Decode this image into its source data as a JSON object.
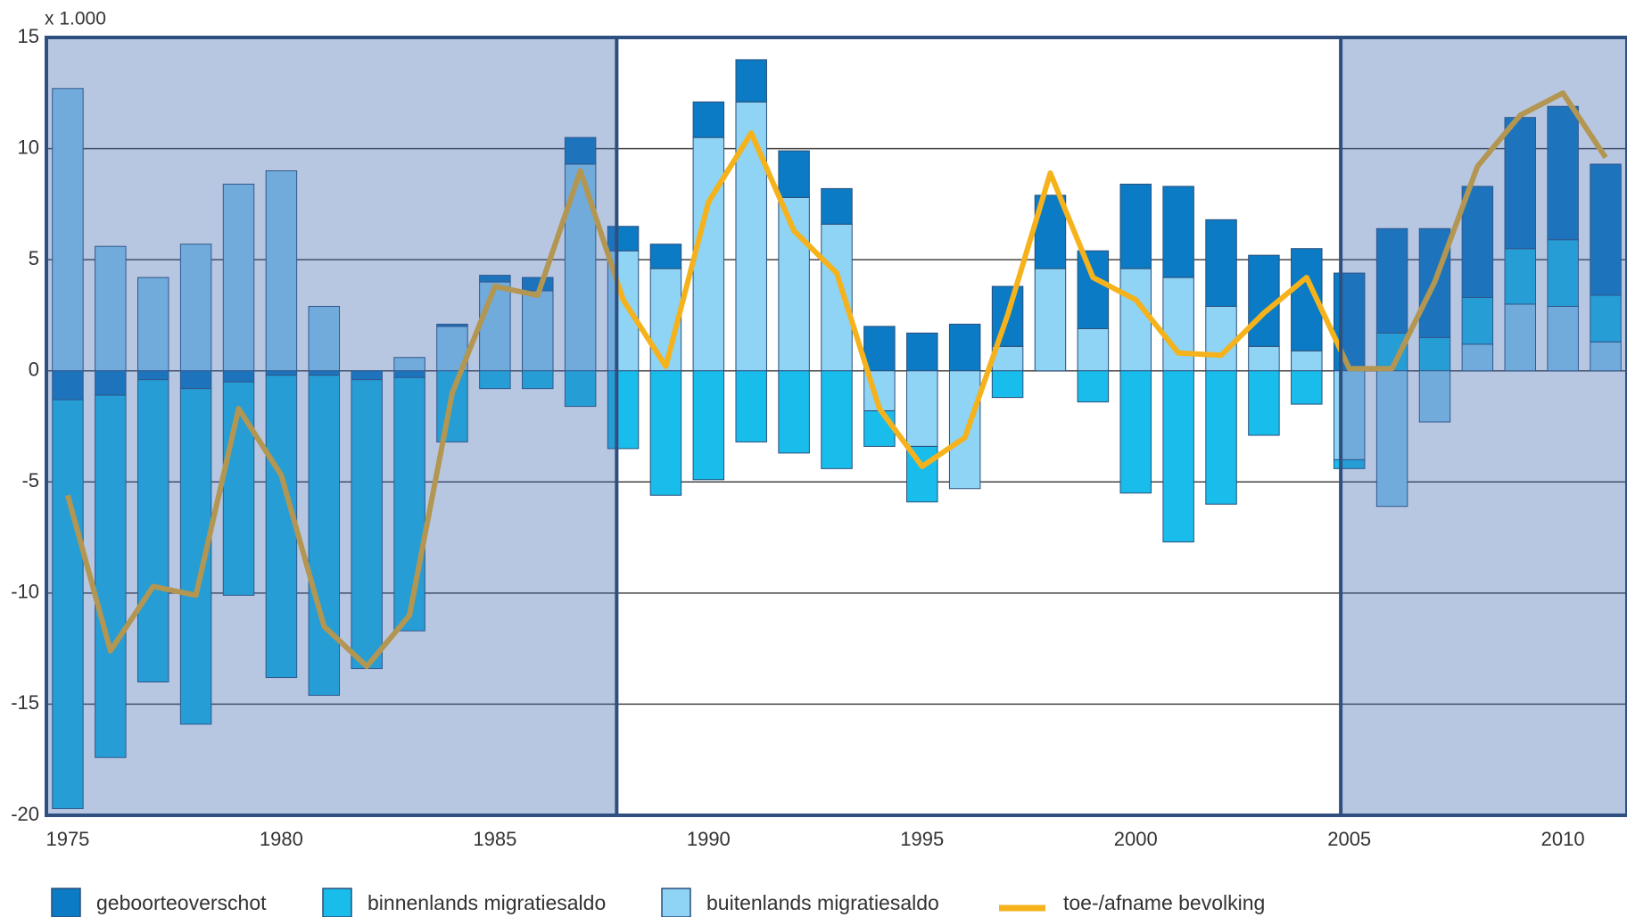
{
  "chart_data": {
    "type": "bar",
    "unit_label": "x 1.000",
    "x": [
      1975,
      1976,
      1977,
      1978,
      1979,
      1980,
      1981,
      1982,
      1983,
      1984,
      1985,
      1986,
      1987,
      1988,
      1989,
      1990,
      1991,
      1992,
      1993,
      1994,
      1995,
      1996,
      1997,
      1998,
      1999,
      2000,
      2001,
      2002,
      2003,
      2004,
      2005,
      2006,
      2007,
      2008,
      2009,
      2010,
      2011
    ],
    "xlim": [
      1974.5,
      2011.5
    ],
    "xticks": [
      1975,
      1980,
      1985,
      1990,
      1995,
      2000,
      2005,
      2010
    ],
    "ylim": [
      -20,
      15
    ],
    "yticks": [
      15,
      10,
      5,
      0,
      -5,
      -10,
      -15,
      -20
    ],
    "grid": true,
    "stacked": true,
    "highlight_periods": [
      [
        1974.5,
        1987.85
      ],
      [
        2004.8,
        2011.5
      ]
    ],
    "series": [
      {
        "name": "geboorteoverschot",
        "type": "bar",
        "color": "#0a7bc4",
        "values": [
          -1.3,
          -1.1,
          -0.4,
          -0.8,
          -0.5,
          -0.2,
          -0.2,
          -0.4,
          -0.3,
          0.1,
          0.3,
          0.6,
          1.2,
          1.1,
          1.1,
          1.6,
          1.9,
          2.1,
          1.6,
          2.0,
          1.7,
          2.1,
          2.7,
          3.3,
          3.5,
          3.8,
          4.1,
          3.9,
          4.1,
          4.6,
          4.4,
          4.7,
          4.9,
          5.0,
          5.9,
          6.0,
          5.9
        ]
      },
      {
        "name": "binnenlands migratiesaldo",
        "type": "bar",
        "color": "#19bdec",
        "values": [
          -18.4,
          -16.3,
          -13.6,
          -15.1,
          -9.6,
          -13.6,
          -14.4,
          -13.0,
          -11.4,
          -3.2,
          -0.8,
          -0.8,
          -1.6,
          -3.5,
          -5.6,
          -4.9,
          -3.2,
          -3.7,
          -4.4,
          -1.6,
          -2.5,
          0,
          -1.2,
          0,
          -1.4,
          -5.5,
          -7.7,
          -6.0,
          -2.9,
          -1.5,
          -0.4,
          1.7,
          1.5,
          2.1,
          2.5,
          3.0,
          2.1
        ]
      },
      {
        "name": "buitenlands migratiesaldo",
        "type": "bar",
        "color": "#8fd3f5",
        "values": [
          12.7,
          5.6,
          4.2,
          5.7,
          8.4,
          9.0,
          2.9,
          0,
          0.6,
          2.0,
          4.0,
          3.6,
          9.3,
          5.4,
          4.6,
          10.5,
          12.1,
          7.8,
          6.6,
          -1.8,
          -3.4,
          -5.3,
          1.1,
          4.6,
          1.9,
          4.6,
          4.2,
          2.9,
          1.1,
          0.9,
          -4.0,
          -6.1,
          -2.3,
          1.2,
          3.0,
          2.9,
          1.3
        ]
      },
      {
        "name": "toe-/afname bevolking",
        "type": "line",
        "color": "#f5b21b",
        "values": [
          -5.6,
          -12.6,
          -9.7,
          -10.1,
          -1.7,
          -4.7,
          -11.5,
          -13.3,
          -11.0,
          -1.0,
          3.8,
          3.4,
          9.0,
          3.2,
          0.2,
          7.6,
          10.7,
          6.3,
          4.4,
          -1.7,
          -4.3,
          -3.0,
          2.5,
          8.9,
          4.2,
          3.2,
          0.8,
          0.7,
          2.6,
          4.2,
          0.1,
          0.1,
          4.0,
          9.2,
          11.5,
          12.5,
          9.6
        ]
      }
    ]
  }
}
